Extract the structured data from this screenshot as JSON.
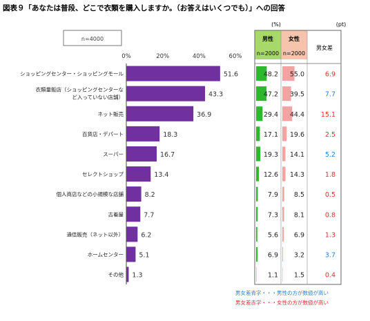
{
  "chart_data": {
    "type": "bar",
    "title": "図表９「あなたは普段、どこで衣類を購入しますか。（お答えはいくつでも）」への回答",
    "sample_label": "n=4000",
    "xlim": [
      0,
      60
    ],
    "ticks": [
      "0%",
      "20%",
      "40%",
      "60%"
    ],
    "tick_values": [
      0,
      20,
      40,
      60
    ],
    "categories": [
      [
        "ショッピングセンター・ショッピングモール"
      ],
      [
        "衣類量販店（ショッピングセンターな",
        "ど入っていない店舗）"
      ],
      [
        "ネット販売"
      ],
      [
        "百貨店・デパート"
      ],
      [
        "スーパー"
      ],
      [
        "セレクトショップ"
      ],
      [
        "個人商店などの小規模な店舗"
      ],
      [
        "古着屋"
      ],
      [
        "通信販売（ネット以外）"
      ],
      [
        "ホームセンター"
      ],
      [
        "その他"
      ]
    ],
    "values": [
      51.6,
      43.3,
      36.9,
      18.3,
      16.7,
      13.4,
      8.2,
      7.7,
      6.2,
      5.1,
      1.3
    ],
    "series_color": "#7030a0",
    "table": {
      "unit_left": "(%)",
      "unit_right": "(pt)",
      "male": {
        "name": "男性",
        "n": "n=2000",
        "color": "#2db82d",
        "values": [
          48.2,
          47.2,
          29.4,
          17.1,
          19.3,
          12.6,
          7.9,
          7.3,
          5.6,
          6.9,
          1.1
        ]
      },
      "female": {
        "name": "女性",
        "n": "n=2000",
        "color": "#f4a3a3",
        "values": [
          55.0,
          39.5,
          44.4,
          19.6,
          14.1,
          14.3,
          8.5,
          8.1,
          6.9,
          3.2,
          1.5
        ]
      },
      "diff": {
        "name": "男女差",
        "labels": [
          "6.9",
          "7.7",
          "15.1",
          "2.5",
          "5.2",
          "1.8",
          "0.5",
          "0.8",
          "1.3",
          "3.7",
          "0.4"
        ],
        "colors": [
          "#e03030",
          "#2a7fd0",
          "#e03030",
          "#e03030",
          "#2a7fd0",
          "#e03030",
          "#e03030",
          "#e03030",
          "#e03030",
          "#2a7fd0",
          "#e03030"
        ]
      }
    },
    "notes": [
      {
        "text": "男女差青字・・・男性の方が数値が高い",
        "color": "#2a7fd0"
      },
      {
        "text": "男女差赤字・・・女性の方が数値が高い",
        "color": "#e03030"
      }
    ]
  }
}
